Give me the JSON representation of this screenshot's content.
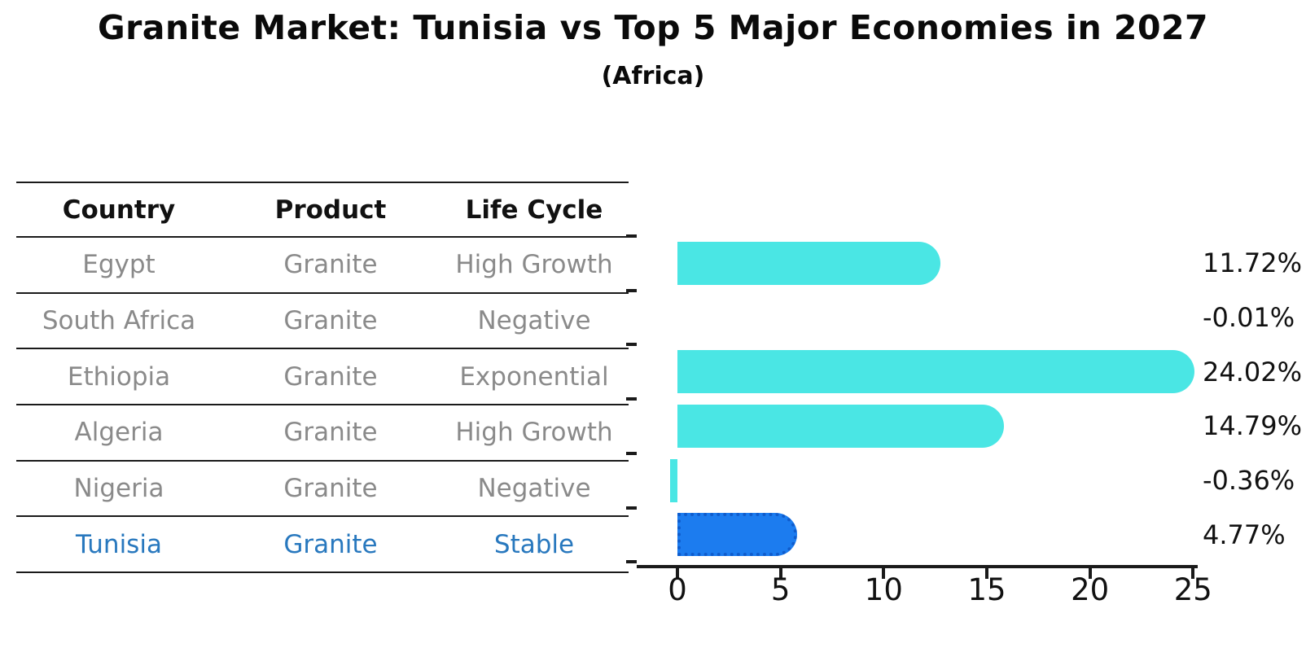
{
  "title": "Granite Market: Tunisia vs Top 5 Major Economies in 2027",
  "subtitle": "(Africa)",
  "table": {
    "headers": [
      "Country",
      "Product",
      "Life Cycle"
    ],
    "rows": [
      {
        "country": "Egypt",
        "product": "Granite",
        "life_cycle": "High Growth",
        "highlight": false
      },
      {
        "country": "South Africa",
        "product": "Granite",
        "life_cycle": "Negative",
        "highlight": false
      },
      {
        "country": "Ethiopia",
        "product": "Granite",
        "life_cycle": "Exponential",
        "highlight": false
      },
      {
        "country": "Algeria",
        "product": "Granite",
        "life_cycle": "High Growth",
        "highlight": false
      },
      {
        "country": "Nigeria",
        "product": "Granite",
        "life_cycle": "Negative",
        "highlight": false
      },
      {
        "country": "Tunisia",
        "product": "Granite",
        "life_cycle": "Stable",
        "highlight": true
      }
    ]
  },
  "chart_data": {
    "type": "bar",
    "orientation": "horizontal",
    "title": "Granite Market: Tunisia vs Top 5 Major Economies in 2027 (Africa)",
    "categories": [
      "Egypt",
      "South Africa",
      "Ethiopia",
      "Algeria",
      "Nigeria",
      "Tunisia"
    ],
    "values": [
      11.72,
      -0.01,
      24.02,
      14.79,
      -0.36,
      4.77
    ],
    "value_labels": [
      "11.72%",
      "-0.01%",
      "24.02%",
      "14.79%",
      "-0.36%",
      "4.77%"
    ],
    "value_unit": "%",
    "x_ticks": [
      0,
      5,
      10,
      15,
      20,
      25
    ],
    "xlim": [
      -2,
      25.2
    ],
    "grid": false,
    "highlight_index": 5,
    "colors": {
      "bar": "#4ae6e4",
      "highlight_bar": "#1c7cef",
      "highlight_text": "#2878be",
      "row_text": "#8a8a8a",
      "axis": "#1a1a1a"
    }
  }
}
